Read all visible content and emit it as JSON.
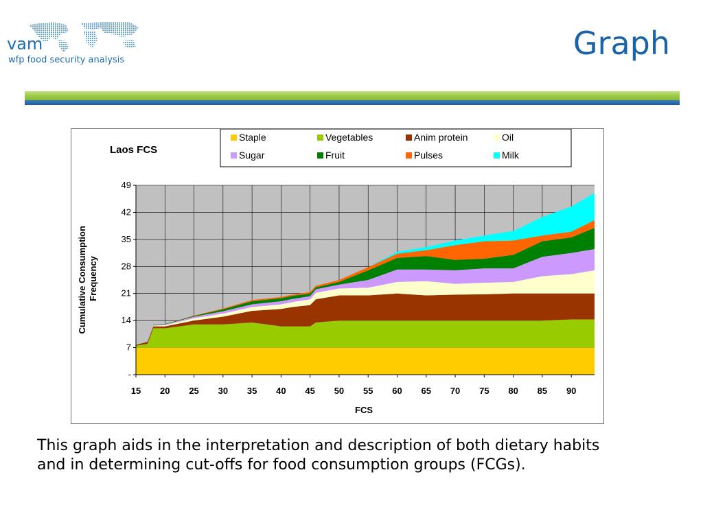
{
  "logo": {
    "name": "vam",
    "tagline": "wfp food security analysis"
  },
  "slide": {
    "title": "Graph",
    "body": "This graph aids in the interpretation and description of both dietary habits and in determining cut-offs for food consumption groups (FCGs)."
  },
  "chart_data": {
    "type": "area",
    "stacked": true,
    "title": "Laos FCS",
    "xlabel": "FCS",
    "ylabel": "Cumulative Consumption Frequency",
    "xlim": [
      15,
      94
    ],
    "ylim": [
      0,
      49
    ],
    "x_ticks": [
      "15",
      "20",
      "25",
      "30",
      "35",
      "40",
      "45",
      "50",
      "55",
      "60",
      "65",
      "70",
      "75",
      "80",
      "85",
      "90"
    ],
    "y_ticks": [
      "-",
      "7",
      "14",
      "21",
      "28",
      "35",
      "42",
      "49"
    ],
    "grid": true,
    "legend": "top",
    "plot_background": "#c0c0c0",
    "x": [
      15,
      17,
      18,
      20,
      25,
      30,
      35,
      40,
      42,
      45,
      46,
      50,
      55,
      60,
      65,
      70,
      75,
      80,
      85,
      90,
      94
    ],
    "series": [
      {
        "name": "Staple",
        "color": "#ffcc00",
        "values": [
          7,
          7,
          7,
          7,
          7,
          7,
          7,
          7,
          7,
          7,
          7,
          7,
          7,
          7,
          7,
          7,
          7,
          7,
          7,
          7,
          7
        ]
      },
      {
        "name": "Vegetables",
        "color": "#99cc00",
        "values": [
          0.5,
          1,
          5,
          5,
          6,
          6,
          6.5,
          5.5,
          5.5,
          5.5,
          6.5,
          7,
          7,
          7,
          7,
          7,
          7,
          7,
          7,
          7.3,
          7.3
        ]
      },
      {
        "name": "Anim protein",
        "color": "#993300",
        "values": [
          0.2,
          0.5,
          0.5,
          0.5,
          1,
          2,
          3,
          4.5,
          5,
          5.5,
          6,
          6.5,
          6.5,
          7,
          6.5,
          6.7,
          6.8,
          7,
          7,
          6.7,
          6.7
        ]
      },
      {
        "name": "Oil",
        "color": "#ffffcc",
        "values": [
          0,
          0,
          0.2,
          0.3,
          0.6,
          0.8,
          1,
          1.2,
          1.3,
          1.5,
          1.7,
          1.8,
          2,
          3,
          3.7,
          2.8,
          3,
          3,
          4.5,
          5,
          6
        ]
      },
      {
        "name": "Sugar",
        "color": "#cc99ff",
        "values": [
          0,
          0,
          0.1,
          0.2,
          0.4,
          0.6,
          0.7,
          0.8,
          0.8,
          0.8,
          0.9,
          1,
          2,
          3.2,
          3,
          3.5,
          3.7,
          3.5,
          5,
          5.5,
          5.5
        ]
      },
      {
        "name": "Fruit",
        "color": "#008000",
        "values": [
          0,
          0,
          0.1,
          0.1,
          0.2,
          0.5,
          0.8,
          0.8,
          0.8,
          0.7,
          0.5,
          0.7,
          2.5,
          3,
          3.5,
          2.7,
          2.5,
          3.5,
          4,
          4,
          5.5
        ]
      },
      {
        "name": "Pulses",
        "color": "#ff6600",
        "values": [
          0,
          0,
          0,
          0,
          0.1,
          0.2,
          0.3,
          0.3,
          0.3,
          0.4,
          0.4,
          0.5,
          0.8,
          1.1,
          1.5,
          3.8,
          4.5,
          3.7,
          1.5,
          1.5,
          2
        ]
      },
      {
        "name": "Milk",
        "color": "#00ffff",
        "values": [
          0,
          0,
          0,
          0,
          0,
          0,
          0,
          0,
          0,
          0,
          0,
          0,
          0,
          0.5,
          0.8,
          1.2,
          1.5,
          2.5,
          4.8,
          6.5,
          7
        ]
      }
    ]
  }
}
